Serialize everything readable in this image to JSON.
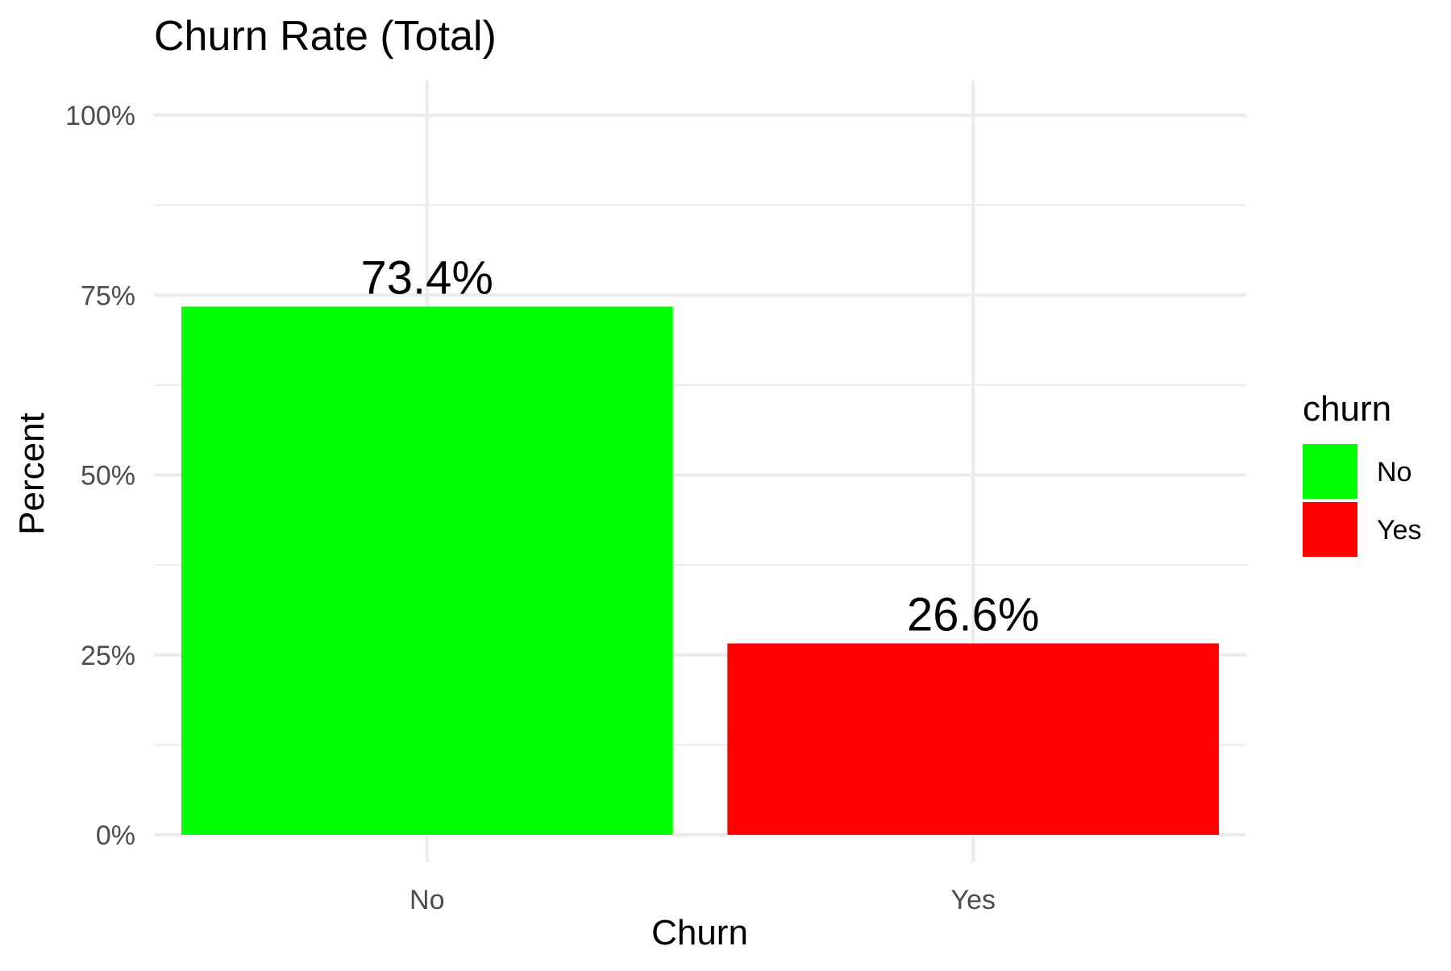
{
  "chart_data": {
    "type": "bar",
    "title": "Churn Rate (Total)",
    "xlabel": "Churn",
    "ylabel": "Percent",
    "categories": [
      "No",
      "Yes"
    ],
    "values": [
      73.4,
      26.6
    ],
    "data_labels": [
      "73.4%",
      "26.6%"
    ],
    "colors": [
      "#00ff00",
      "#ff0000"
    ],
    "ylim": [
      0,
      100
    ],
    "yticks": [
      0,
      25,
      50,
      75,
      100
    ],
    "ytick_labels": [
      "0%",
      "25%",
      "50%",
      "75%",
      "100%"
    ],
    "grid": true,
    "legend": {
      "title": "churn",
      "position": "right",
      "entries": [
        {
          "label": "No",
          "color": "#00ff00"
        },
        {
          "label": "Yes",
          "color": "#ff0000"
        }
      ]
    }
  }
}
